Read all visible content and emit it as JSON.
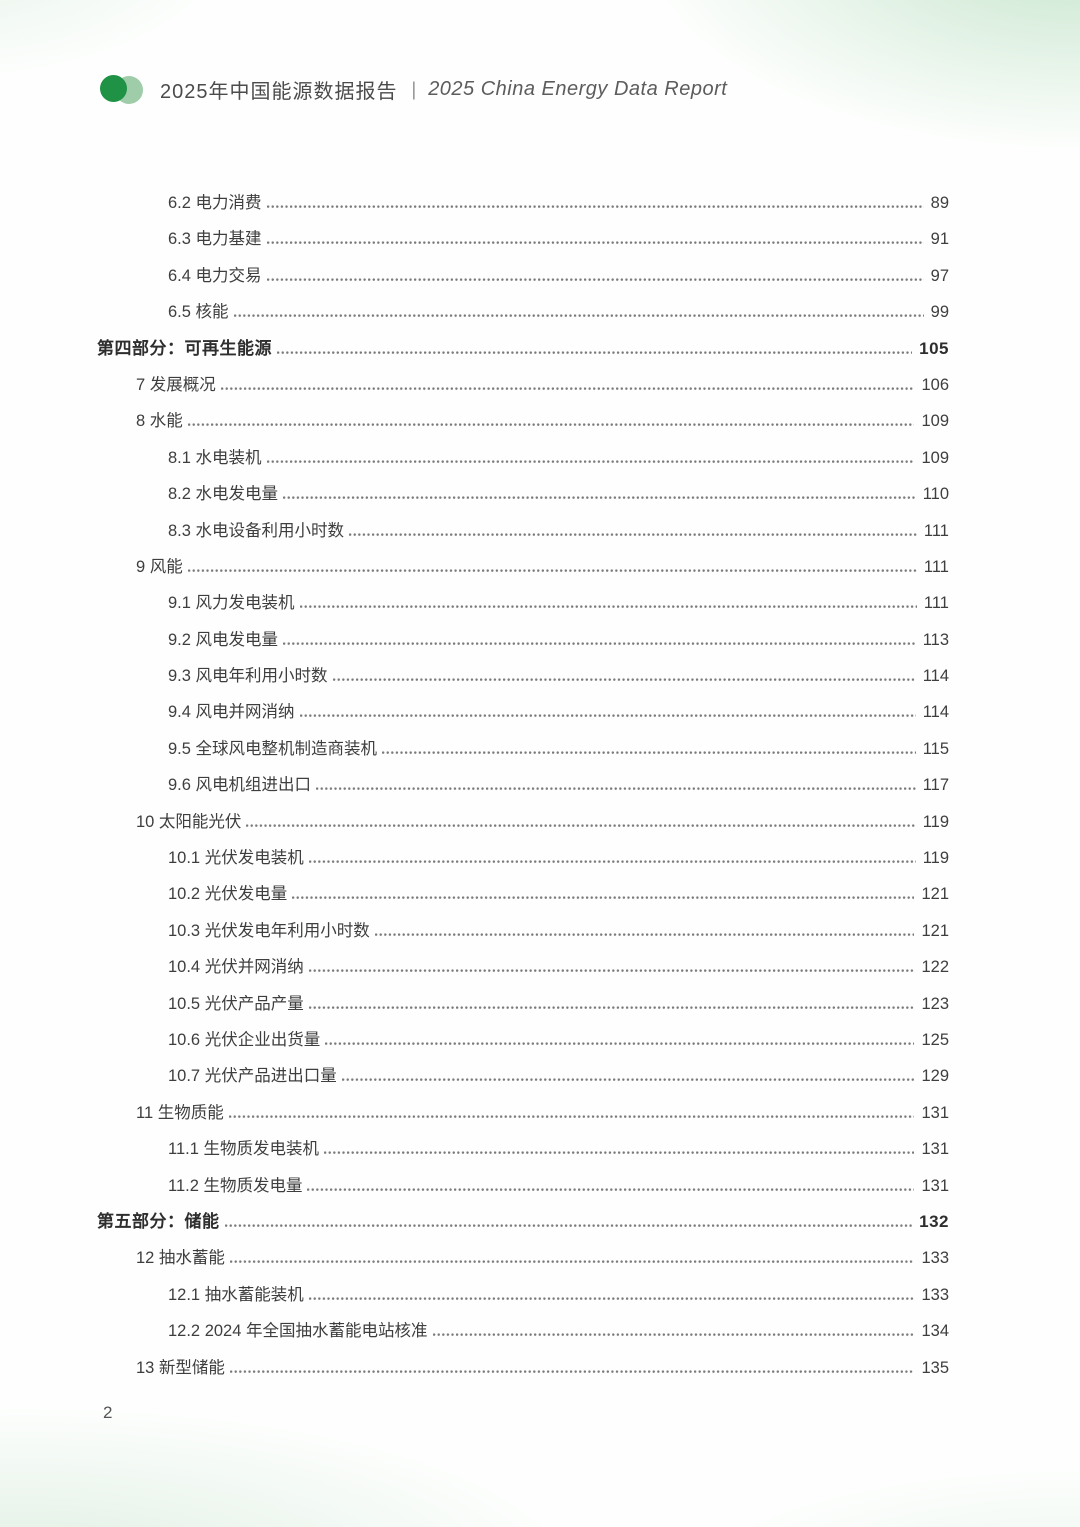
{
  "brand": {
    "dark_green": "#1f9245",
    "light_green": "#8ec49a"
  },
  "header": {
    "title_zh": "2025年中国能源数据报告",
    "divider": "|",
    "title_en": "2025 China Energy Data Report"
  },
  "toc": {
    "entries": [
      {
        "level": "subsection",
        "label": "6.2 电力消费",
        "page": "89"
      },
      {
        "level": "subsection",
        "label": "6.3 电力基建",
        "page": "91"
      },
      {
        "level": "subsection",
        "label": "6.4 电力交易",
        "page": "97"
      },
      {
        "level": "subsection",
        "label": "6.5 核能",
        "page": "99"
      },
      {
        "level": "section",
        "label": "第四部分：可再生能源",
        "page": "105"
      },
      {
        "level": "chapter",
        "label": "7 发展概况",
        "page": "106"
      },
      {
        "level": "chapter",
        "label": "8 水能",
        "page": "109"
      },
      {
        "level": "subsection",
        "label": "8.1 水电装机",
        "page": "109"
      },
      {
        "level": "subsection",
        "label": "8.2 水电发电量",
        "page": "110"
      },
      {
        "level": "subsection",
        "label": "8.3 水电设备利用小时数",
        "page": "111"
      },
      {
        "level": "chapter",
        "label": "9 风能",
        "page": "111"
      },
      {
        "level": "subsection",
        "label": "9.1 风力发电装机",
        "page": "111"
      },
      {
        "level": "subsection",
        "label": "9.2 风电发电量",
        "page": "113"
      },
      {
        "level": "subsection",
        "label": "9.3 风电年利用小时数",
        "page": "114"
      },
      {
        "level": "subsection",
        "label": "9.4 风电并网消纳",
        "page": "114"
      },
      {
        "level": "subsection",
        "label": "9.5 全球风电整机制造商装机",
        "page": "115"
      },
      {
        "level": "subsection",
        "label": "9.6 风电机组进出口",
        "page": "117"
      },
      {
        "level": "chapter",
        "label": "10 太阳能光伏",
        "page": "119"
      },
      {
        "level": "subsection",
        "label": "10.1 光伏发电装机",
        "page": "119"
      },
      {
        "level": "subsection",
        "label": "10.2 光伏发电量",
        "page": "121"
      },
      {
        "level": "subsection",
        "label": "10.3 光伏发电年利用小时数",
        "page": "121"
      },
      {
        "level": "subsection",
        "label": "10.4 光伏并网消纳",
        "page": "122"
      },
      {
        "level": "subsection",
        "label": "10.5 光伏产品产量",
        "page": "123"
      },
      {
        "level": "subsection",
        "label": "10.6 光伏企业出货量",
        "page": "125"
      },
      {
        "level": "subsection",
        "label": "10.7 光伏产品进出口量",
        "page": "129"
      },
      {
        "level": "chapter",
        "label": "11 生物质能",
        "page": "131"
      },
      {
        "level": "subsection",
        "label": "11.1 生物质发电装机",
        "page": "131"
      },
      {
        "level": "subsection",
        "label": "11.2 生物质发电量",
        "page": "131"
      },
      {
        "level": "section",
        "label": "第五部分：储能",
        "page": "132"
      },
      {
        "level": "chapter",
        "label": "12 抽水蓄能",
        "page": "133"
      },
      {
        "level": "subsection",
        "label": "12.1 抽水蓄能装机",
        "page": "133"
      },
      {
        "level": "subsection",
        "label": "12.2 2024 年全国抽水蓄能电站核准",
        "page": "134"
      },
      {
        "level": "chapter",
        "label": "13 新型储能",
        "page": "135"
      }
    ]
  },
  "footer": {
    "page_number": "2"
  }
}
